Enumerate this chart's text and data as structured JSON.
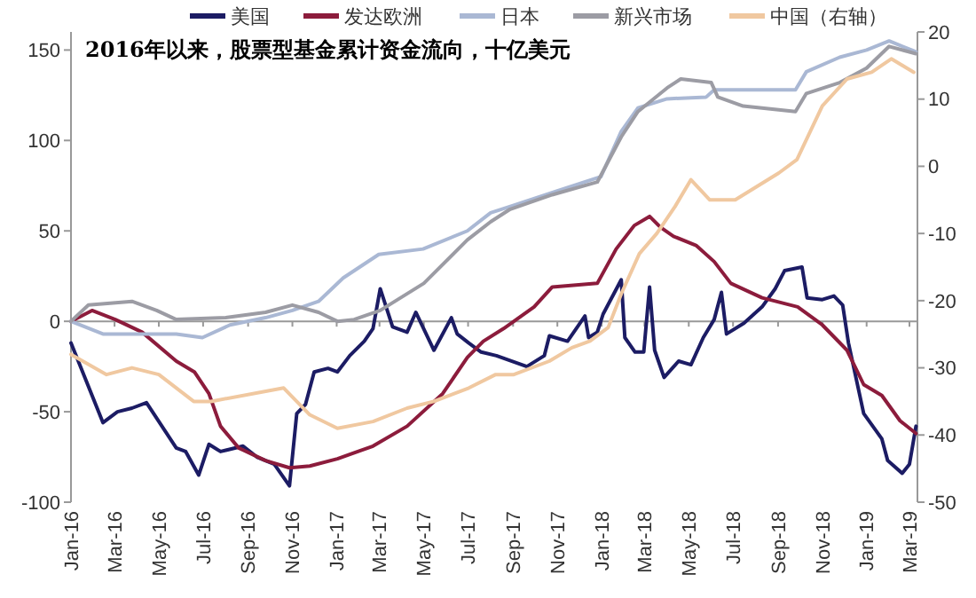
{
  "chart_data": {
    "type": "line",
    "title": "2016年以来，股票型基金累计资金流向，十亿美元",
    "xlim": [
      "2016-01-01",
      "2019-03-12"
    ],
    "xticks": [
      {
        "value": "2016-01",
        "label": "Jan-16"
      },
      {
        "value": "2016-03",
        "label": "Mar-16"
      },
      {
        "value": "2016-05",
        "label": "May-16"
      },
      {
        "value": "2016-07",
        "label": "Jul-16"
      },
      {
        "value": "2016-09",
        "label": "Sep-16"
      },
      {
        "value": "2016-11",
        "label": "Nov-16"
      },
      {
        "value": "2017-01",
        "label": "Jan-17"
      },
      {
        "value": "2017-03",
        "label": "Mar-17"
      },
      {
        "value": "2017-05",
        "label": "May-17"
      },
      {
        "value": "2017-07",
        "label": "Jul-17"
      },
      {
        "value": "2017-09",
        "label": "Sep-17"
      },
      {
        "value": "2017-11",
        "label": "Nov-17"
      },
      {
        "value": "2018-01",
        "label": "Jan-18"
      },
      {
        "value": "2018-03",
        "label": "Mar-18"
      },
      {
        "value": "2018-05",
        "label": "May-18"
      },
      {
        "value": "2018-07",
        "label": "Jul-18"
      },
      {
        "value": "2018-09",
        "label": "Sep-18"
      },
      {
        "value": "2018-11",
        "label": "Nov-18"
      },
      {
        "value": "2019-01",
        "label": "Jan-19"
      },
      {
        "value": "2019-03",
        "label": "Mar-19"
      }
    ],
    "ylim": [
      -100,
      160
    ],
    "yticks": [
      -100,
      -50,
      0,
      50,
      100,
      150
    ],
    "y2lim": [
      -50,
      20
    ],
    "y2ticks": [
      -50,
      -40,
      -30,
      -20,
      -10,
      0,
      10,
      20
    ],
    "legend": "top",
    "grid": false,
    "marker": "none",
    "line_style": "solid",
    "series": [
      {
        "name": "美国",
        "color": "#1c1c64",
        "x": [
          "2016-01-01",
          "2016-02-14",
          "2016-03-05",
          "2016-03-25",
          "2016-04-14",
          "2016-05-25",
          "2016-06-07",
          "2016-06-25",
          "2016-07-09",
          "2016-07-25",
          "2016-08-25",
          "2016-09-13",
          "2016-10-07",
          "2016-10-28",
          "2016-11-07",
          "2016-11-19",
          "2016-12-01",
          "2016-12-20",
          "2017-01-02",
          "2017-01-19",
          "2017-02-08",
          "2017-02-20",
          "2017-03-02",
          "2017-03-19",
          "2017-04-08",
          "2017-04-20",
          "2017-05-15",
          "2017-06-08",
          "2017-06-16",
          "2017-07-02",
          "2017-07-19",
          "2017-08-09",
          "2017-09-20",
          "2017-10-14",
          "2017-10-21",
          "2017-11-15",
          "2017-12-09",
          "2017-12-14",
          "2017-12-26",
          "2018-01-03",
          "2018-01-28",
          "2018-02-02",
          "2018-02-16",
          "2018-02-28",
          "2018-03-08",
          "2018-03-15",
          "2018-03-28",
          "2018-04-17",
          "2018-05-04",
          "2018-05-21",
          "2018-06-05",
          "2018-06-15",
          "2018-06-22",
          "2018-07-16",
          "2018-08-10",
          "2018-08-28",
          "2018-09-10",
          "2018-10-04",
          "2018-10-11",
          "2018-11-01",
          "2018-11-17",
          "2018-11-29",
          "2018-12-07",
          "2018-12-28",
          "2019-01-22",
          "2019-01-30",
          "2019-02-19",
          "2019-03-01",
          "2019-03-10"
        ],
        "values": [
          -12,
          -56,
          -50,
          -48,
          -45,
          -70,
          -72,
          -85,
          -68,
          -72,
          -69,
          -75,
          -79,
          -91,
          -51,
          -46,
          -28,
          -26,
          -28,
          -19,
          -11,
          -4,
          18,
          -3,
          -6,
          5,
          -16,
          2,
          -7,
          -12,
          -17,
          -19,
          -25,
          -19,
          -8,
          -11,
          3,
          -9,
          -6,
          4,
          23,
          -9,
          -17,
          -17,
          19,
          -16,
          -31,
          -22,
          -24,
          -9,
          1,
          16,
          -7,
          -1,
          8,
          18,
          28,
          30,
          13,
          12,
          14,
          9,
          -12,
          -51,
          -65,
          -77,
          -84,
          -79,
          -58
        ]
      },
      {
        "name": "发达欧洲",
        "color": "#8c1c3c",
        "x": [
          "2016-01-01",
          "2016-01-30",
          "2016-03-02",
          "2016-04-08",
          "2016-05-25",
          "2016-06-19",
          "2016-07-09",
          "2016-07-25",
          "2016-08-19",
          "2016-09-25",
          "2016-10-28",
          "2016-11-25",
          "2017-01-02",
          "2017-02-20",
          "2017-04-08",
          "2017-05-27",
          "2017-06-30",
          "2017-07-22",
          "2017-08-19",
          "2017-09-30",
          "2017-10-25",
          "2017-12-26",
          "2018-01-21",
          "2018-02-15",
          "2018-03-08",
          "2018-03-23",
          "2018-04-10",
          "2018-05-11",
          "2018-06-05",
          "2018-06-28",
          "2018-08-10",
          "2018-09-28",
          "2018-11-01",
          "2018-12-05",
          "2018-12-28",
          "2019-01-22",
          "2019-02-16",
          "2019-03-10"
        ],
        "values": [
          0,
          6,
          1,
          -6,
          -22,
          -28,
          -40,
          -58,
          -70,
          -77,
          -81,
          -80,
          -76,
          -69,
          -58,
          -40,
          -20,
          -11,
          -4,
          8,
          19,
          21,
          40,
          53,
          58,
          52,
          47,
          42,
          33,
          21,
          13,
          8,
          -2,
          -16,
          -35,
          -41,
          -55,
          -62
        ]
      },
      {
        "name": "日本",
        "color": "#aab8d4",
        "x": [
          "2016-01-01",
          "2016-02-14",
          "2016-05-25",
          "2016-06-30",
          "2016-08-07",
          "2016-09-25",
          "2016-11-01",
          "2016-12-07",
          "2017-01-10",
          "2017-02-28",
          "2017-04-30",
          "2017-06-30",
          "2017-08-01",
          "2017-09-01",
          "2017-10-31",
          "2017-12-31",
          "2018-01-28",
          "2018-02-20",
          "2018-04-01",
          "2018-05-25",
          "2018-06-05",
          "2018-07-10",
          "2018-09-25",
          "2018-10-10",
          "2018-11-25",
          "2019-01-01",
          "2019-02-01",
          "2019-03-10"
        ],
        "values": [
          0,
          -7,
          -7,
          -9,
          -2,
          2,
          6,
          11,
          24,
          37,
          40,
          50,
          60,
          64,
          72,
          80,
          105,
          118,
          123,
          124,
          128,
          128,
          128,
          138,
          146,
          150,
          155,
          149
        ]
      },
      {
        "name": "新兴市场",
        "color": "#9c9ca4",
        "x": [
          "2016-01-01",
          "2016-01-25",
          "2016-03-25",
          "2016-04-28",
          "2016-05-25",
          "2016-08-01",
          "2016-09-25",
          "2016-11-01",
          "2016-12-07",
          "2017-01-02",
          "2017-01-25",
          "2017-03-02",
          "2017-05-01",
          "2017-06-30",
          "2017-08-01",
          "2017-08-28",
          "2017-10-25",
          "2017-12-26",
          "2018-01-28",
          "2018-02-20",
          "2018-04-01",
          "2018-04-20",
          "2018-06-01",
          "2018-06-10",
          "2018-07-15",
          "2018-09-25",
          "2018-10-10",
          "2018-11-25",
          "2019-01-01",
          "2019-02-01",
          "2019-03-10"
        ],
        "values": [
          0,
          9,
          11,
          6,
          1,
          2,
          5,
          9,
          5,
          0,
          1,
          6,
          21,
          45,
          55,
          62,
          70,
          77,
          102,
          116,
          129,
          134,
          132,
          124,
          119,
          116,
          126,
          132,
          140,
          152,
          148
        ]
      },
      {
        "name": "中国（右轴）",
        "color": "#f0c8a0",
        "axis": "y2",
        "x": [
          "2016-01-01",
          "2016-02-19",
          "2016-03-25",
          "2016-05-01",
          "2016-06-18",
          "2016-07-12",
          "2016-10-20",
          "2016-11-25",
          "2017-01-02",
          "2017-02-20",
          "2017-04-08",
          "2017-05-15",
          "2017-07-02",
          "2017-08-08",
          "2017-09-02",
          "2017-10-21",
          "2017-11-21",
          "2017-12-16",
          "2018-01-10",
          "2018-01-28",
          "2018-02-22",
          "2018-03-18",
          "2018-04-12",
          "2018-05-04",
          "2018-05-30",
          "2018-07-04",
          "2018-09-02",
          "2018-09-27",
          "2018-11-01",
          "2018-12-05",
          "2019-01-08",
          "2019-02-04",
          "2019-03-07"
        ],
        "values": [
          -28,
          -31,
          -30,
          -31,
          -35,
          -35,
          -33,
          -37,
          -39,
          -38,
          -36,
          -35,
          -33,
          -31,
          -31,
          -29,
          -27,
          -26,
          -24,
          -19,
          -13,
          -10,
          -6,
          -2,
          -5,
          -5,
          -1,
          1,
          9,
          13,
          14,
          16,
          14
        ]
      }
    ]
  }
}
